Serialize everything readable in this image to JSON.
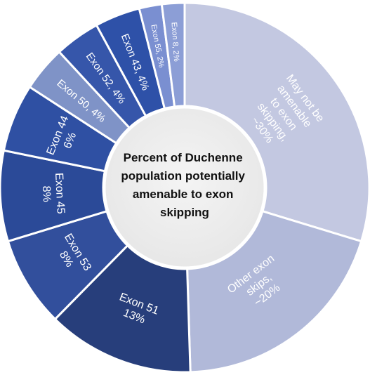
{
  "chart_data": {
    "type": "pie",
    "style": "donut",
    "center_text": [
      "Percent of Duchenne",
      "population potentially",
      "amenable to exon",
      "skipping"
    ],
    "slices": [
      {
        "lines": [
          "May not be",
          "amenable",
          "to exon",
          "skipping,",
          "~30%"
        ],
        "value": 30,
        "color": "#c3c8e1"
      },
      {
        "lines": [
          "Other exon",
          "skips,",
          "~20%"
        ],
        "value": 20,
        "color": "#b1b9d9"
      },
      {
        "lines": [
          "Exon 51",
          "13%"
        ],
        "value": 13,
        "color": "#273e7b"
      },
      {
        "lines": [
          "Exon 53",
          "8%"
        ],
        "value": 8,
        "color": "#324f9c"
      },
      {
        "lines": [
          "Exon 45",
          "8%"
        ],
        "value": 8,
        "color": "#2b4a98"
      },
      {
        "lines": [
          "Exon 44",
          "6%"
        ],
        "value": 6,
        "color": "#2f50a3"
      },
      {
        "lines": [
          "Exon 50, 4%"
        ],
        "value": 4,
        "color": "#7f93c7"
      },
      {
        "lines": [
          "Exon 52, 4%"
        ],
        "value": 4,
        "color": "#3656aa"
      },
      {
        "lines": [
          "Exon 43, 4%"
        ],
        "value": 4,
        "color": "#2e51a8"
      },
      {
        "lines": [
          "Exon 55, 2%"
        ],
        "value": 2,
        "color": "#7a8fd1"
      },
      {
        "lines": [
          "Exon 8, 2%"
        ],
        "value": 2,
        "color": "#8c9ed6"
      }
    ]
  }
}
